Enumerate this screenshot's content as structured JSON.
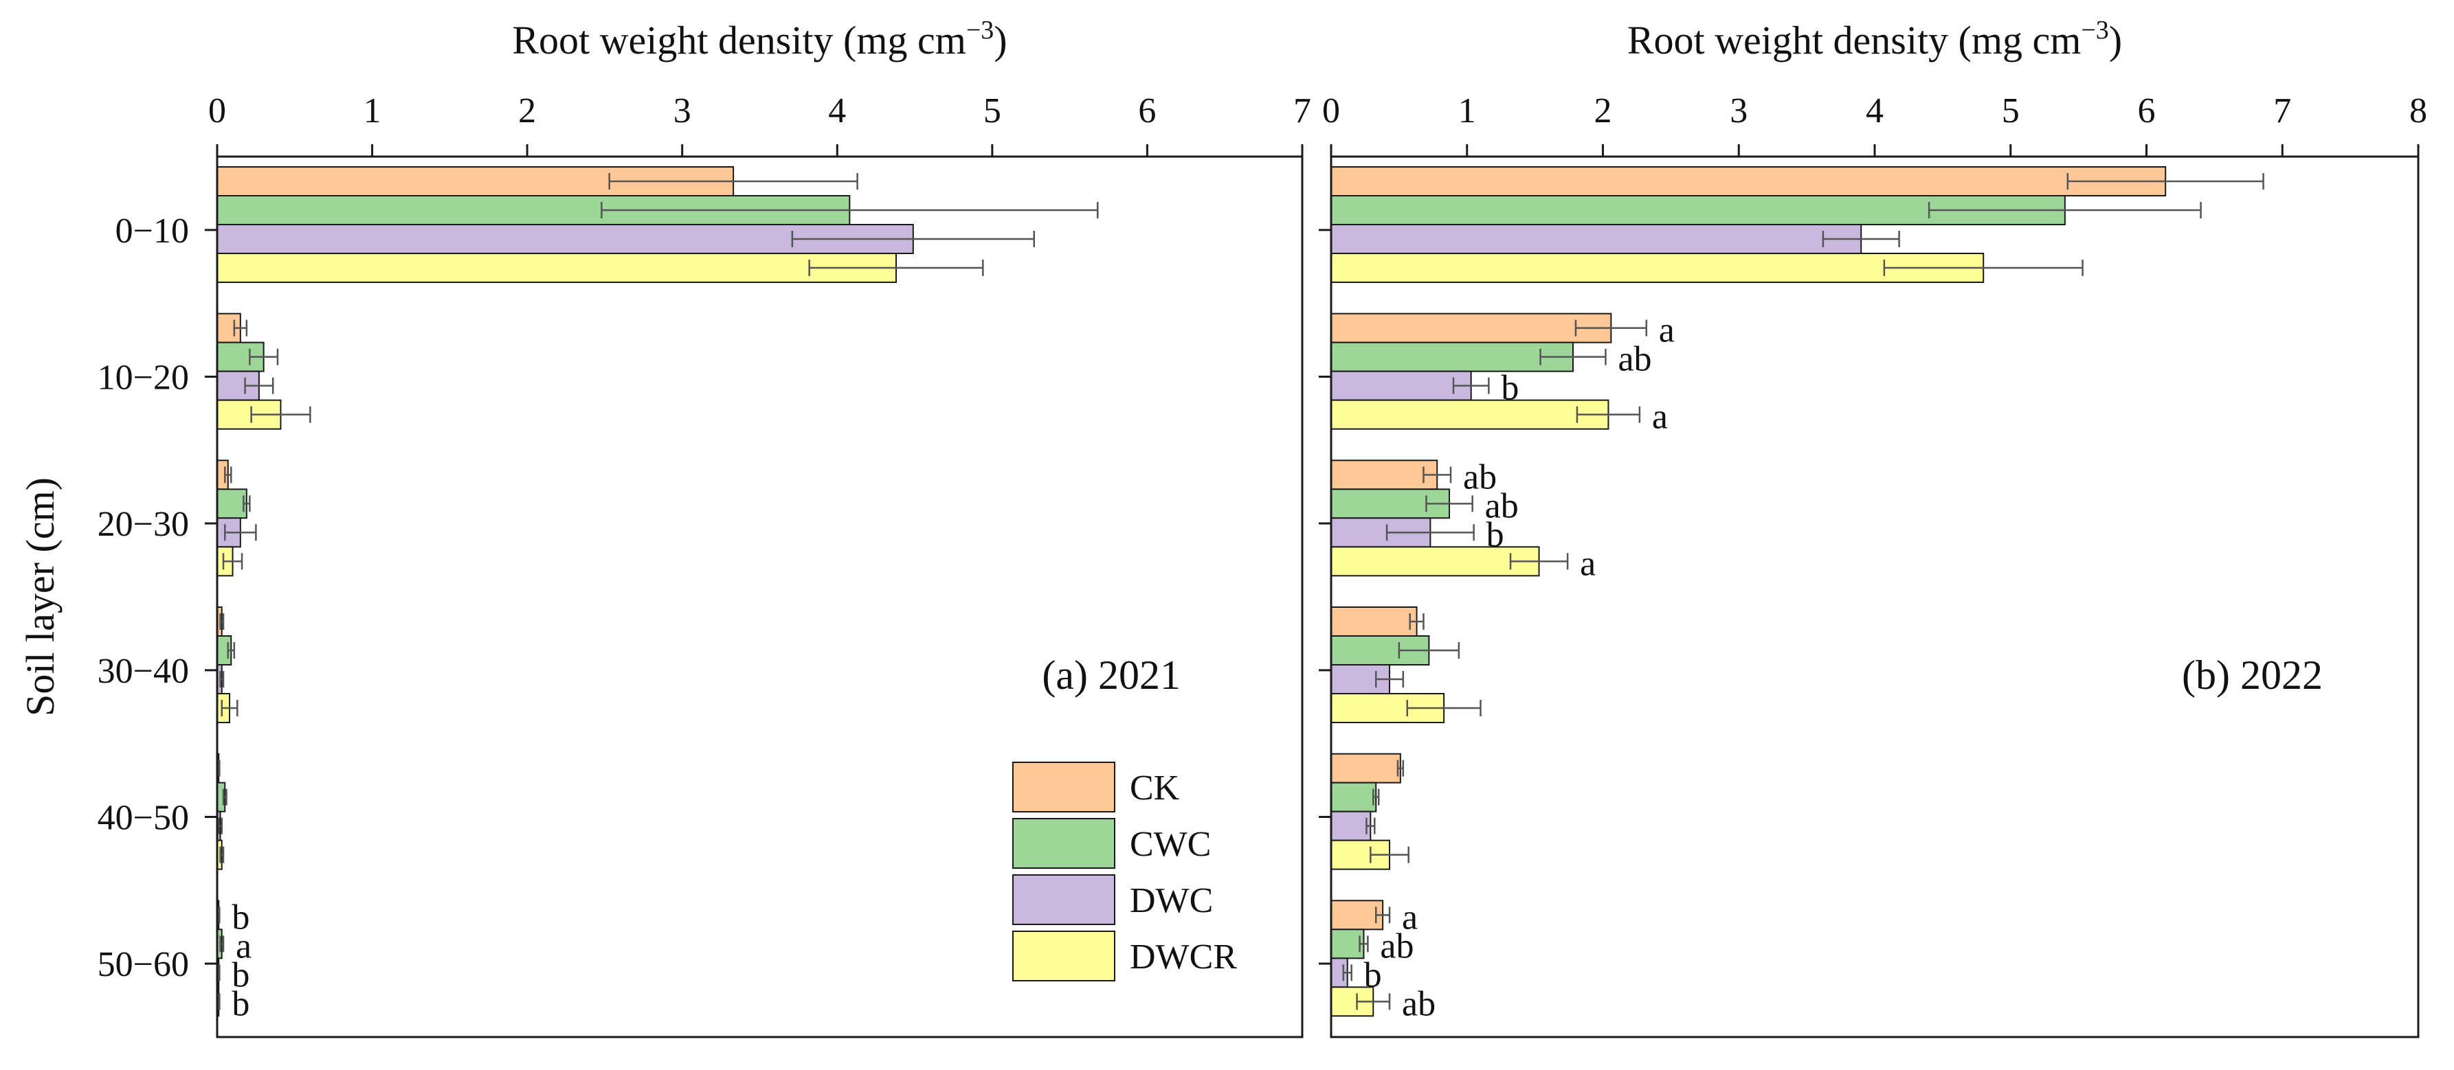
{
  "chart_data": {
    "type": "bar",
    "orientation": "horizontal",
    "y_axis_title": "Soil layer (cm)",
    "categories": [
      "0−10",
      "10−20",
      "20−30",
      "30−40",
      "40−50",
      "50−60"
    ],
    "legend": {
      "placement": "bottom-right of panel (a)",
      "entries": [
        {
          "name": "CK",
          "color": "#FFC896"
        },
        {
          "name": "CWC",
          "color": "#9ED69A"
        },
        {
          "name": "DWC",
          "color": "#C9B8DD"
        },
        {
          "name": "DWCR",
          "color": "#FFFF99"
        }
      ]
    },
    "panels": [
      {
        "id": "a",
        "label": "(a) 2021",
        "xlabel": "Root weight density (mg cm",
        "xlabel_sup": "−3",
        "xlabel_end": ")",
        "xlim": [
          0,
          7
        ],
        "xticks": [
          "0",
          "1",
          "2",
          "3",
          "4",
          "5",
          "6",
          "7"
        ],
        "series": [
          {
            "name": "CK",
            "values": [
              3.33,
              0.15,
              0.07,
              0.03,
              0.01,
              0.01
            ],
            "errors": [
              0.8,
              0.04,
              0.02,
              0.01,
              0.005,
              0.005
            ],
            "sig": [
              "",
              "",
              "",
              "",
              "",
              "b"
            ]
          },
          {
            "name": "CWC",
            "values": [
              4.08,
              0.3,
              0.19,
              0.09,
              0.05,
              0.03
            ],
            "errors": [
              1.6,
              0.09,
              0.02,
              0.02,
              0.01,
              0.01
            ],
            "sig": [
              "",
              "",
              "",
              "",
              "",
              "a"
            ]
          },
          {
            "name": "DWC",
            "values": [
              4.49,
              0.27,
              0.15,
              0.03,
              0.02,
              0.01
            ],
            "errors": [
              0.78,
              0.09,
              0.1,
              0.01,
              0.01,
              0.005
            ],
            "sig": [
              "",
              "",
              "",
              "",
              "",
              "b"
            ]
          },
          {
            "name": "DWCR",
            "values": [
              4.38,
              0.41,
              0.1,
              0.08,
              0.03,
              0.01
            ],
            "errors": [
              0.56,
              0.19,
              0.06,
              0.05,
              0.01,
              0.005
            ],
            "sig": [
              "",
              "",
              "",
              "",
              "",
              "b"
            ]
          }
        ]
      },
      {
        "id": "b",
        "label": "(b) 2022",
        "xlabel": "Root weight density (mg cm",
        "xlabel_sup": "−3",
        "xlabel_end": ")",
        "xlim": [
          0,
          8
        ],
        "xticks": [
          "0",
          "1",
          "2",
          "3",
          "4",
          "5",
          "6",
          "7",
          "8"
        ],
        "series": [
          {
            "name": "CK",
            "values": [
              6.14,
              2.06,
              0.78,
              0.63,
              0.51,
              0.38
            ],
            "errors": [
              0.72,
              0.26,
              0.1,
              0.05,
              0.02,
              0.05
            ],
            "sig": [
              "",
              "a",
              "ab",
              "",
              "",
              "a"
            ]
          },
          {
            "name": "CWC",
            "values": [
              5.4,
              1.78,
              0.87,
              0.72,
              0.33,
              0.24
            ],
            "errors": [
              1.0,
              0.24,
              0.17,
              0.22,
              0.02,
              0.03
            ],
            "sig": [
              "",
              "ab",
              "ab",
              "",
              "",
              "ab"
            ]
          },
          {
            "name": "DWC",
            "values": [
              3.9,
              1.03,
              0.73,
              0.43,
              0.29,
              0.12
            ],
            "errors": [
              0.28,
              0.13,
              0.32,
              0.1,
              0.03,
              0.03
            ],
            "sig": [
              "",
              "b",
              "b",
              "",
              "",
              "b"
            ]
          },
          {
            "name": "DWCR",
            "values": [
              4.8,
              2.04,
              1.53,
              0.83,
              0.43,
              0.31
            ],
            "errors": [
              0.73,
              0.23,
              0.21,
              0.27,
              0.14,
              0.12
            ],
            "sig": [
              "",
              "a",
              "a",
              "",
              "",
              "ab"
            ]
          }
        ]
      }
    ]
  }
}
